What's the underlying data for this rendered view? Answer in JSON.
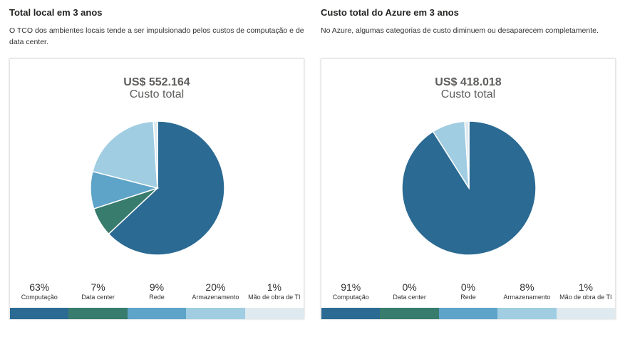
{
  "sections": [
    {
      "title": "Total local em 3 anos",
      "description": "O TCO dos ambientes locais tende a ser impulsionado pelos custos de computação e de data center.",
      "total_amount": "US$ 552.164",
      "total_label": "Custo total"
    },
    {
      "title": "Custo total do Azure em 3 anos",
      "description": "No Azure, algumas categorias de custo diminuem ou desaparecem completamente.",
      "total_amount": "US$ 418.018",
      "total_label": "Custo total"
    }
  ],
  "colors": [
    "#2a6a93",
    "#387c6e",
    "#5ea3c8",
    "#a0cde2",
    "#dfeaf0"
  ],
  "chart_data": [
    {
      "type": "pie",
      "title": "Total local em 3 anos",
      "categories": [
        "Computação",
        "Data center",
        "Rede",
        "Armazenamento",
        "Mão de obra de TI"
      ],
      "values": [
        63,
        7,
        9,
        20,
        1
      ],
      "value_labels": [
        "63%",
        "7%",
        "9%",
        "20%",
        "1%"
      ],
      "legend": "bottom"
    },
    {
      "type": "pie",
      "title": "Custo total do Azure em 3 anos",
      "categories": [
        "Computação",
        "Data center",
        "Rede",
        "Armazenamento",
        "Mão de obra de TI"
      ],
      "values": [
        91,
        0,
        0,
        8,
        1
      ],
      "value_labels": [
        "91%",
        "0%",
        "0%",
        "8%",
        "1%"
      ],
      "legend": "bottom"
    }
  ]
}
